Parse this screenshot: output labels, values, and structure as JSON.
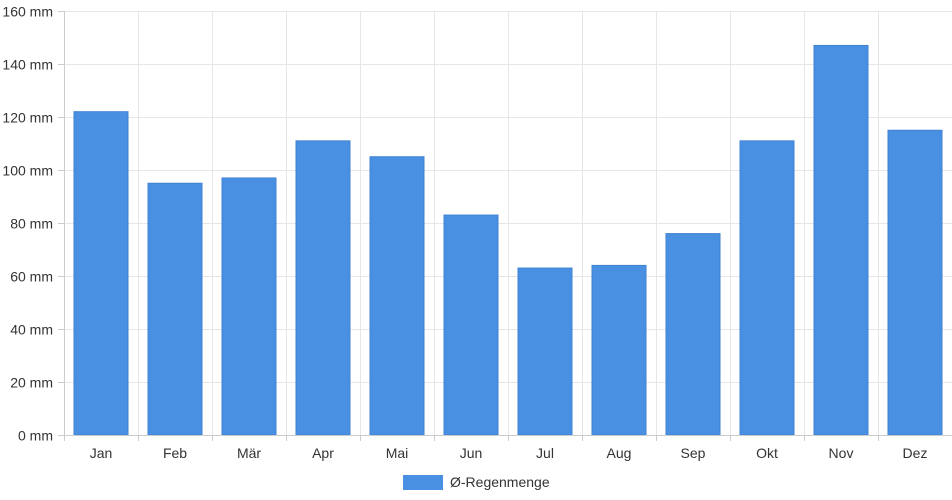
{
  "chart_data": {
    "type": "bar",
    "categories": [
      "Jan",
      "Feb",
      "Mär",
      "Apr",
      "Mai",
      "Jun",
      "Jul",
      "Aug",
      "Sep",
      "Okt",
      "Nov",
      "Dez"
    ],
    "series": [
      {
        "name": "Ø-Regenmenge",
        "color": "#4a90e2",
        "values": [
          122,
          95,
          97,
          111,
          105,
          83,
          63,
          64,
          76,
          111,
          147,
          115
        ]
      }
    ],
    "y_unit": "mm",
    "ylim": [
      0,
      160
    ],
    "y_ticks": [
      "0 mm",
      "20 mm",
      "40 mm",
      "60 mm",
      "80 mm",
      "100 mm",
      "120 mm",
      "140 mm",
      "160 mm"
    ],
    "grid": true,
    "legend_position": "bottom"
  }
}
